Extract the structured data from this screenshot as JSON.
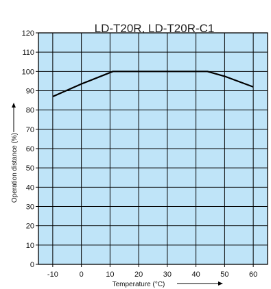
{
  "chart_data": {
    "type": "line",
    "title": "LD-T20R, LD-T20R-C1",
    "xlabel": "Temperature (°C)",
    "ylabel": "Operation distance (%)",
    "xlim": [
      -15,
      65
    ],
    "ylim": [
      0,
      120
    ],
    "xticks": [
      -10,
      0,
      10,
      20,
      30,
      40,
      50,
      60
    ],
    "yticks": [
      0,
      10,
      20,
      30,
      40,
      50,
      60,
      70,
      80,
      90,
      100,
      110,
      120
    ],
    "xtick_labels": [
      "-10",
      "0",
      "10",
      "20",
      "30",
      "40",
      "50",
      "60"
    ],
    "ytick_labels": [
      "0",
      "10",
      "20",
      "30",
      "40",
      "50",
      "60",
      "70",
      "80",
      "90",
      "100",
      "110",
      "120"
    ],
    "grid": true,
    "plot_background": "#bfe4f8",
    "line_color": "#000000",
    "series": [
      {
        "x": [
          -10,
          0,
          11,
          44,
          50,
          60
        ],
        "y": [
          87,
          93.5,
          100,
          100,
          97.5,
          92
        ]
      }
    ]
  }
}
